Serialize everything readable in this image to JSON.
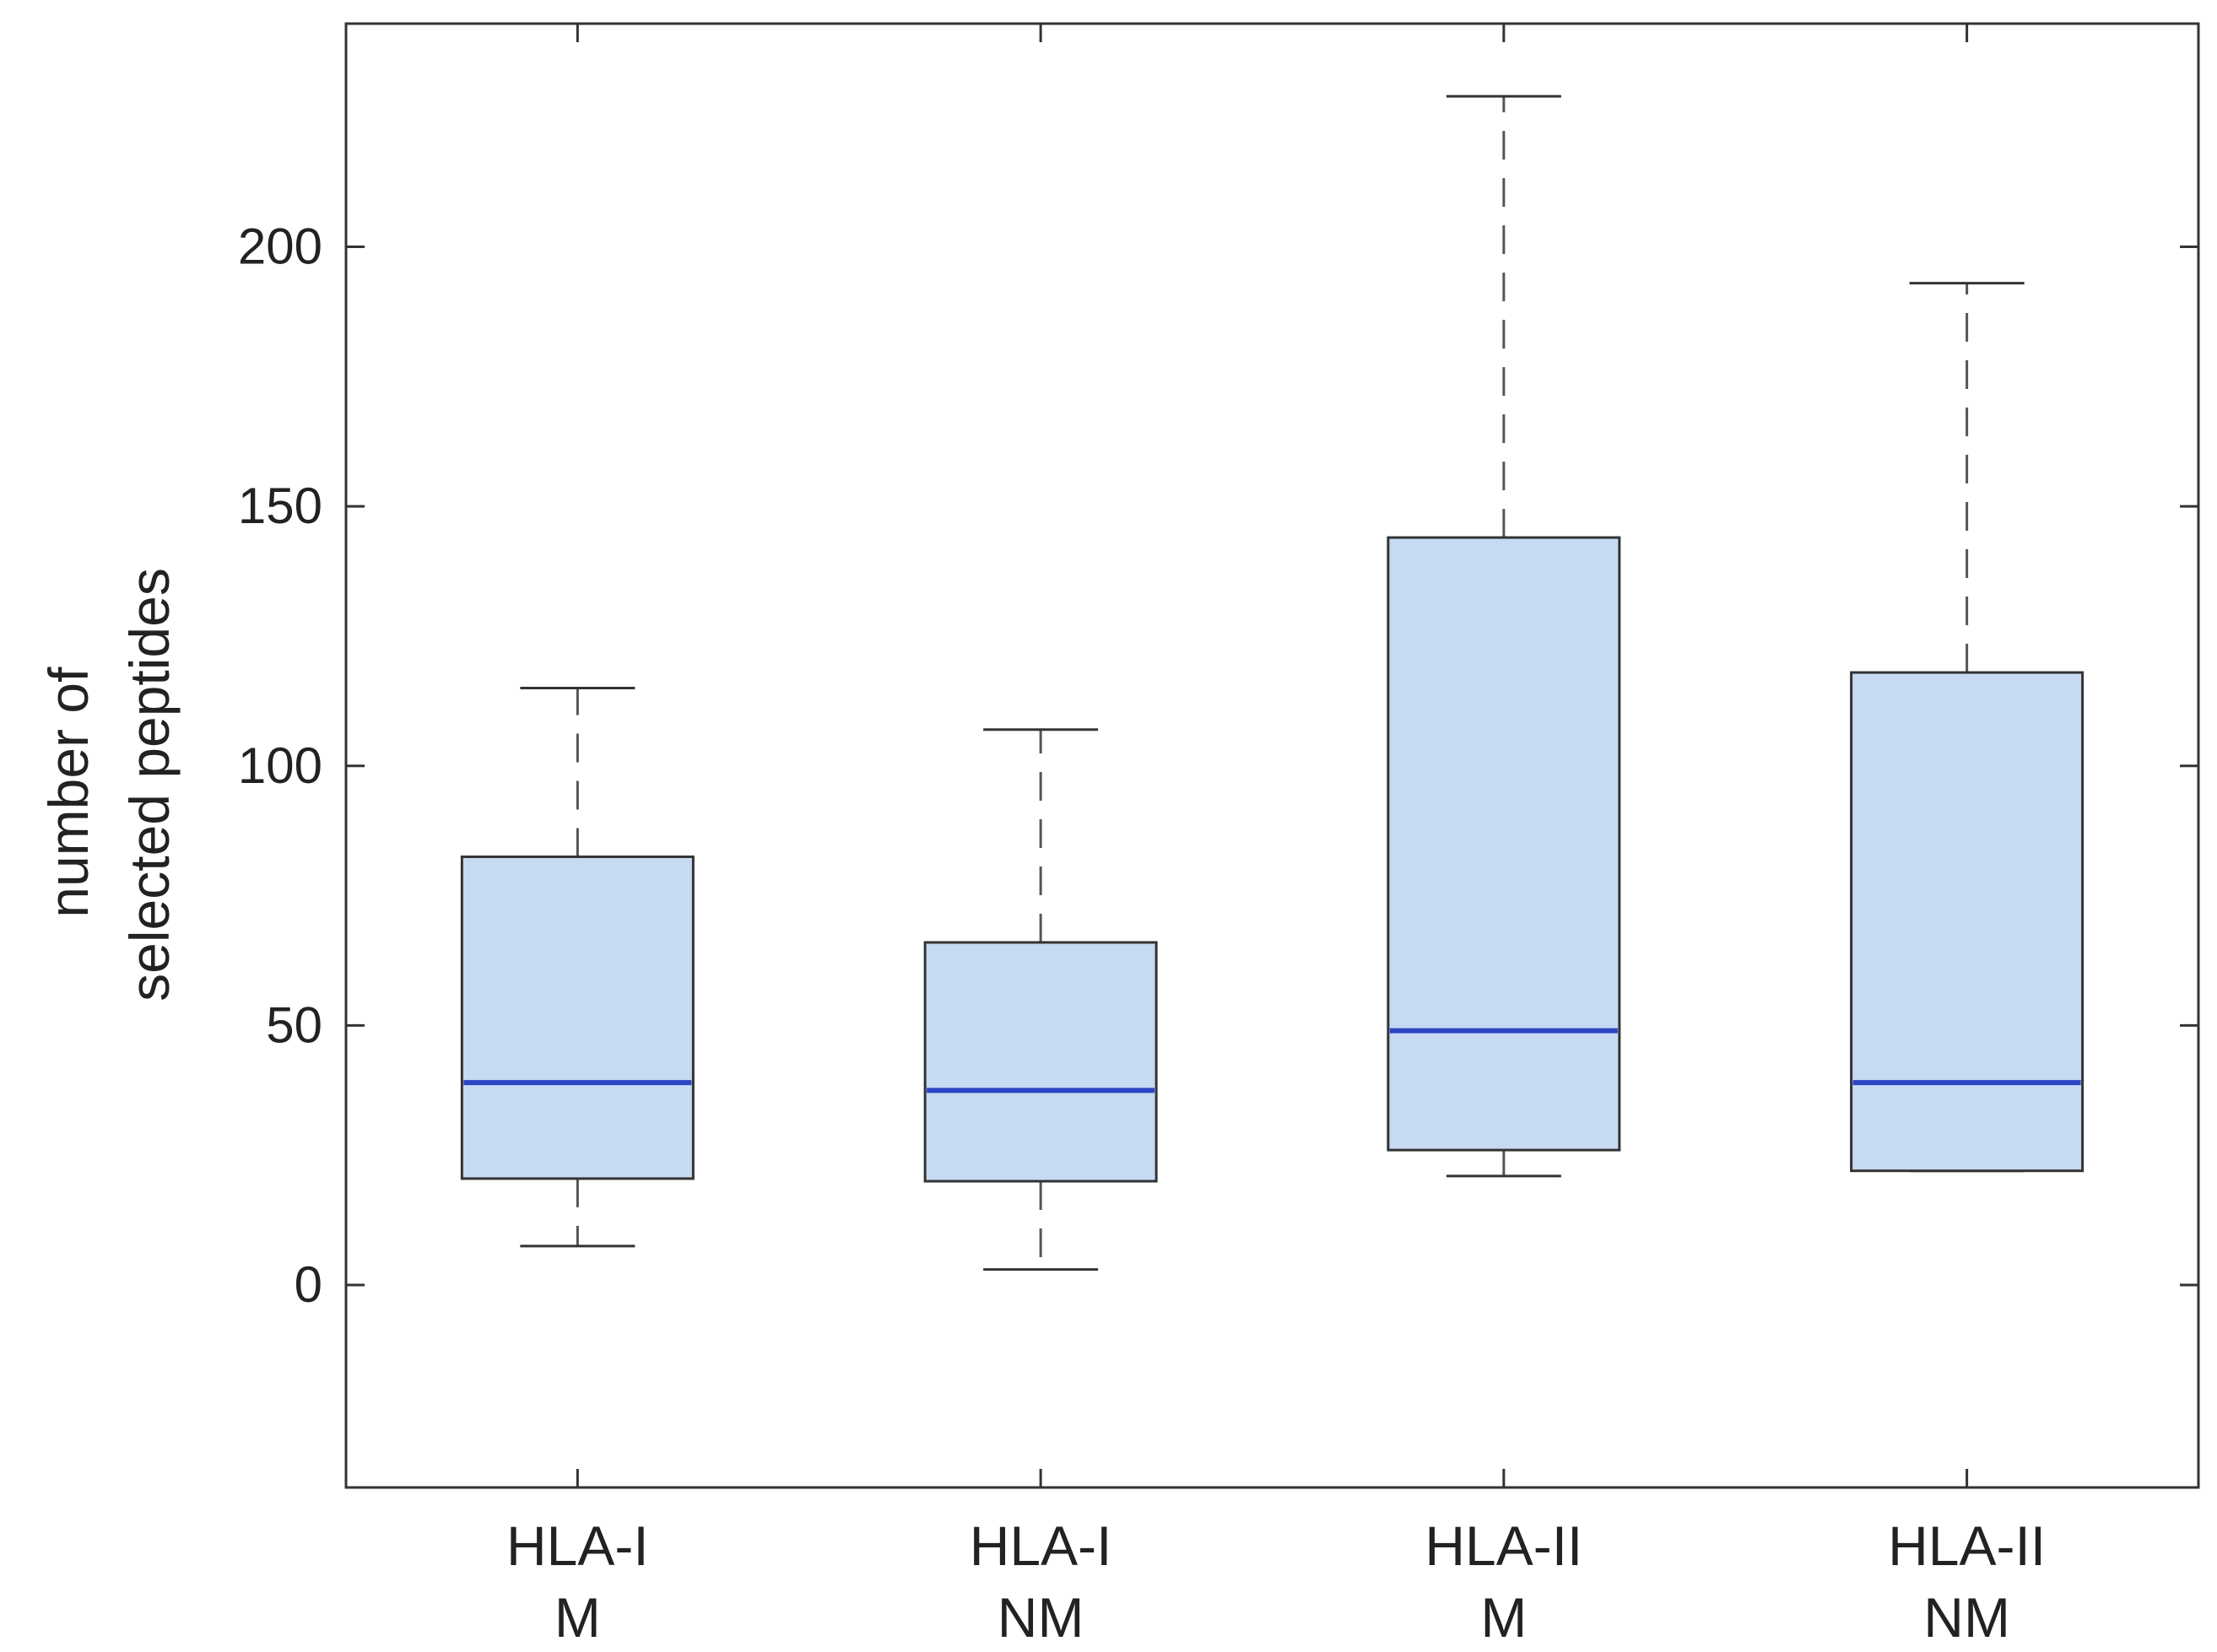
{
  "chart_data": {
    "type": "boxplot",
    "title": "",
    "xlabel": "",
    "ylabel": [
      "number of",
      "selected peptides"
    ],
    "ylim": [
      -39,
      243
    ],
    "yticks": [
      0,
      50,
      100,
      150,
      200
    ],
    "grid": false,
    "categories": [
      {
        "line1": "HLA-I",
        "line2": "M"
      },
      {
        "line1": "HLA-I",
        "line2": "NM"
      },
      {
        "line1": "HLA-II",
        "line2": "M"
      },
      {
        "line1": "HLA-II",
        "line2": "NM"
      }
    ],
    "boxes": [
      {
        "whisker_low": 7.5,
        "q1": 20.5,
        "median": 39,
        "q3": 82.5,
        "whisker_high": 115
      },
      {
        "whisker_low": 3,
        "q1": 20,
        "median": 37.5,
        "q3": 66,
        "whisker_high": 107
      },
      {
        "whisker_low": 21,
        "q1": 26,
        "median": 49,
        "q3": 144,
        "whisker_high": 229
      },
      {
        "whisker_low": 22,
        "q1": 22,
        "median": 39,
        "q3": 118,
        "whisker_high": 193
      }
    ],
    "colors": {
      "box_fill": "#c6daf2",
      "box_edge": "#333333",
      "median": "#2b45c4",
      "whisker": "#555555",
      "axis": "#333333"
    }
  }
}
